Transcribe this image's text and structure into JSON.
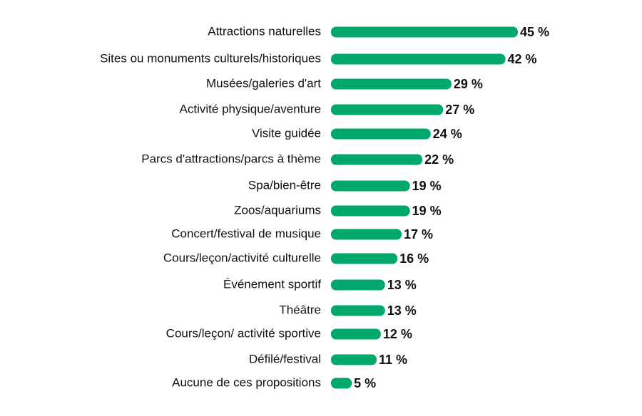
{
  "chart_data": {
    "type": "bar",
    "orientation": "horizontal",
    "categories": [
      "Attractions naturelles",
      "Sites ou monuments culturels/historiques",
      "Musées/galeries d'art",
      "Activité physique/aventure",
      "Visite guidée",
      "Parcs d'attractions/parcs à thème",
      "Spa/bien-être",
      "Zoos/aquariums",
      "Concert/festival de musique",
      "Cours/leçon/activité culturelle",
      "Événement sportif",
      "Théâtre",
      "Cours/leçon/ activité sportive",
      "Défilé/festival",
      "Aucune de ces propositions"
    ],
    "values": [
      45,
      42,
      29,
      27,
      24,
      22,
      19,
      19,
      17,
      16,
      13,
      13,
      12,
      11,
      5
    ],
    "value_labels": [
      "45 %",
      "42 %",
      "29 %",
      "27 %",
      "24 %",
      "22 %",
      "19 %",
      "19 %",
      "17 %",
      "16 %",
      "13 %",
      "13 %",
      "12 %",
      "11 %",
      "5 %"
    ],
    "title": "",
    "xlabel": "",
    "ylabel": "",
    "xlim": [
      0,
      45
    ],
    "grid": false,
    "legend": "none",
    "bar_color": "#00a86b"
  }
}
